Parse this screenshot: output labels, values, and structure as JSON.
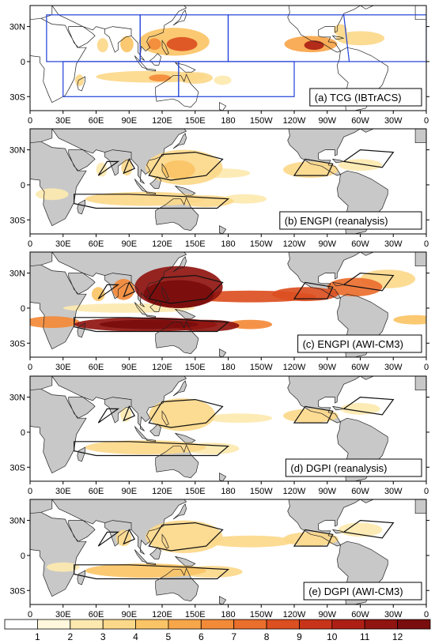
{
  "chart_data": {
    "type": "heatmap",
    "colorbar": {
      "labels": [
        "1",
        "2",
        "3",
        "4",
        "5",
        "6",
        "7",
        "8",
        "9",
        "10",
        "11",
        "12"
      ],
      "colors": [
        "#ffffff",
        "#fff8dc",
        "#fde9b0",
        "#fcd88a",
        "#fbc466",
        "#f8a64a",
        "#f38a38",
        "#ea6e2c",
        "#dc4f21",
        "#c83419",
        "#ad1f14",
        "#901510",
        "#7a0d0d"
      ]
    },
    "x_ticks": [
      "0",
      "30E",
      "60E",
      "90E",
      "120E",
      "150E",
      "180",
      "150W",
      "120W",
      "90W",
      "60W",
      "30W",
      "0"
    ],
    "y_ticks": [
      "30N",
      "0",
      "30S"
    ],
    "land_color": "#c8c8c8",
    "region_box_color": "#1f3fd8",
    "panels": [
      {
        "label": "(a) TCG (IBTrACS)",
        "blobs": [
          {
            "lon": 131,
            "lat": 17,
            "rx": 32,
            "ry": 12,
            "level": 4
          },
          {
            "lon": 138,
            "lat": 15,
            "rx": 14,
            "ry": 6,
            "level": 8
          },
          {
            "lon": 113,
            "lat": 15,
            "rx": 6,
            "ry": 5,
            "level": 6
          },
          {
            "lon": 88,
            "lat": 15,
            "rx": 6,
            "ry": 7,
            "level": 4
          },
          {
            "lon": 66,
            "lat": 14,
            "rx": 5,
            "ry": 6,
            "level": 3
          },
          {
            "lon": 255,
            "lat": 15,
            "rx": 24,
            "ry": 7,
            "level": 5
          },
          {
            "lon": 258,
            "lat": 14,
            "rx": 9,
            "ry": 4,
            "level": 10
          },
          {
            "lon": 300,
            "lat": 20,
            "rx": 22,
            "ry": 6,
            "level": 3
          },
          {
            "lon": 282,
            "lat": 27,
            "rx": 6,
            "ry": 5,
            "level": 3
          },
          {
            "lon": 110,
            "lat": -13,
            "rx": 50,
            "ry": 5,
            "level": 3
          },
          {
            "lon": 118,
            "lat": -14,
            "rx": 10,
            "ry": 3,
            "level": 6
          },
          {
            "lon": 150,
            "lat": -14,
            "rx": 16,
            "ry": 5,
            "level": 3
          },
          {
            "lon": 175,
            "lat": -16,
            "rx": 8,
            "ry": 4,
            "level": 2
          },
          {
            "lon": 45,
            "lat": -16,
            "rx": 4,
            "ry": 5,
            "level": 3
          }
        ]
      },
      {
        "label": "(b) ENGPI (reanalysis)",
        "blobs": [
          {
            "lon": 140,
            "lat": 15,
            "rx": 35,
            "ry": 15,
            "level": 3
          },
          {
            "lon": 135,
            "lat": 13,
            "rx": 15,
            "ry": 8,
            "level": 4
          },
          {
            "lon": 175,
            "lat": 10,
            "rx": 25,
            "ry": 4,
            "level": 2
          },
          {
            "lon": 255,
            "lat": 13,
            "rx": 25,
            "ry": 7,
            "level": 3
          },
          {
            "lon": 300,
            "lat": 17,
            "rx": 20,
            "ry": 5,
            "level": 2
          },
          {
            "lon": 88,
            "lat": 15,
            "rx": 5,
            "ry": 7,
            "level": 3
          },
          {
            "lon": 65,
            "lat": 13,
            "rx": 5,
            "ry": 6,
            "level": 2
          },
          {
            "lon": 105,
            "lat": -12,
            "rx": 55,
            "ry": 6,
            "level": 3
          },
          {
            "lon": 160,
            "lat": -14,
            "rx": 25,
            "ry": 5,
            "level": 3
          },
          {
            "lon": 195,
            "lat": -12,
            "rx": 20,
            "ry": 4,
            "level": 2
          },
          {
            "lon": 20,
            "lat": -8,
            "rx": 15,
            "ry": 5,
            "level": 2
          }
        ]
      },
      {
        "label": "(c) ENGPI (AWI-CM3)",
        "blobs": [
          {
            "lon": 135,
            "lat": 18,
            "rx": 40,
            "ry": 18,
            "level": 11
          },
          {
            "lon": 135,
            "lat": 12,
            "rx": 32,
            "ry": 12,
            "level": 13
          },
          {
            "lon": 200,
            "lat": 10,
            "rx": 60,
            "ry": 5,
            "level": 8
          },
          {
            "lon": 250,
            "lat": 12,
            "rx": 30,
            "ry": 6,
            "level": 8
          },
          {
            "lon": 295,
            "lat": 18,
            "rx": 25,
            "ry": 8,
            "level": 7
          },
          {
            "lon": 325,
            "lat": 25,
            "rx": 25,
            "ry": 8,
            "level": 3
          },
          {
            "lon": 85,
            "lat": 16,
            "rx": 10,
            "ry": 9,
            "level": 6
          },
          {
            "lon": 62,
            "lat": 12,
            "rx": 6,
            "ry": 6,
            "level": 4
          },
          {
            "lon": 105,
            "lat": -14,
            "rx": 65,
            "ry": 6,
            "level": 11
          },
          {
            "lon": 108,
            "lat": -14,
            "rx": 45,
            "ry": 4,
            "level": 13
          },
          {
            "lon": 160,
            "lat": -15,
            "rx": 30,
            "ry": 5,
            "level": 11
          },
          {
            "lon": 200,
            "lat": -14,
            "rx": 20,
            "ry": 4,
            "level": 6
          },
          {
            "lon": 20,
            "lat": -12,
            "rx": 25,
            "ry": 5,
            "level": 6
          },
          {
            "lon": 350,
            "lat": -10,
            "rx": 20,
            "ry": 4,
            "level": 4
          },
          {
            "lon": 90,
            "lat": 0,
            "rx": 60,
            "ry": 4,
            "level": 2
          }
        ]
      },
      {
        "label": "(d) DGPI (reanalysis)",
        "blobs": [
          {
            "lon": 138,
            "lat": 15,
            "rx": 30,
            "ry": 14,
            "level": 3
          },
          {
            "lon": 190,
            "lat": 12,
            "rx": 30,
            "ry": 4,
            "level": 2
          },
          {
            "lon": 255,
            "lat": 14,
            "rx": 25,
            "ry": 6,
            "level": 3
          },
          {
            "lon": 300,
            "lat": 20,
            "rx": 18,
            "ry": 5,
            "level": 2
          },
          {
            "lon": 87,
            "lat": 15,
            "rx": 5,
            "ry": 6,
            "level": 2
          },
          {
            "lon": 105,
            "lat": -13,
            "rx": 55,
            "ry": 6,
            "level": 3
          },
          {
            "lon": 165,
            "lat": -14,
            "rx": 25,
            "ry": 5,
            "level": 2
          }
        ]
      },
      {
        "label": "(e) DGPI (AWI-CM3)",
        "blobs": [
          {
            "lon": 140,
            "lat": 16,
            "rx": 35,
            "ry": 14,
            "level": 3
          },
          {
            "lon": 200,
            "lat": 12,
            "rx": 40,
            "ry": 5,
            "level": 3
          },
          {
            "lon": 255,
            "lat": 14,
            "rx": 25,
            "ry": 6,
            "level": 3
          },
          {
            "lon": 300,
            "lat": 22,
            "rx": 20,
            "ry": 6,
            "level": 2
          },
          {
            "lon": 85,
            "lat": 15,
            "rx": 7,
            "ry": 7,
            "level": 3
          },
          {
            "lon": 105,
            "lat": -13,
            "rx": 55,
            "ry": 6,
            "level": 4
          },
          {
            "lon": 165,
            "lat": -14,
            "rx": 28,
            "ry": 5,
            "level": 3
          },
          {
            "lon": 30,
            "lat": -10,
            "rx": 15,
            "ry": 4,
            "level": 2
          }
        ]
      }
    ]
  }
}
